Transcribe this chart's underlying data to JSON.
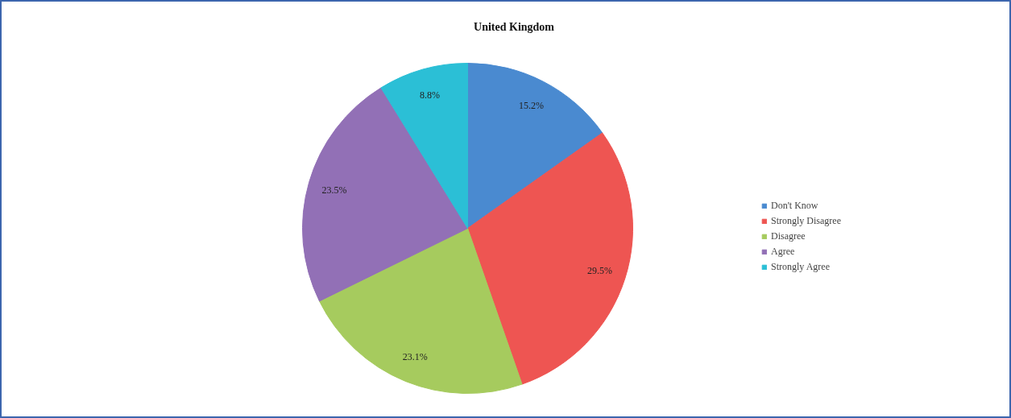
{
  "chart_data": {
    "type": "pie",
    "title": "United Kingdom",
    "categories": [
      "Don't Know",
      "Strongly Disagree",
      "Disagree",
      "Agree",
      "Strongly Agree"
    ],
    "values": [
      15.2,
      29.5,
      23.1,
      23.5,
      8.8
    ],
    "colors": [
      "#4a8ad0",
      "#ee5552",
      "#a6cb5e",
      "#9270b6",
      "#2bbfd6"
    ],
    "value_labels": [
      "15.2%",
      "29.5%",
      "23.1%",
      "23.5%",
      "8.8%"
    ],
    "legend": "right"
  }
}
